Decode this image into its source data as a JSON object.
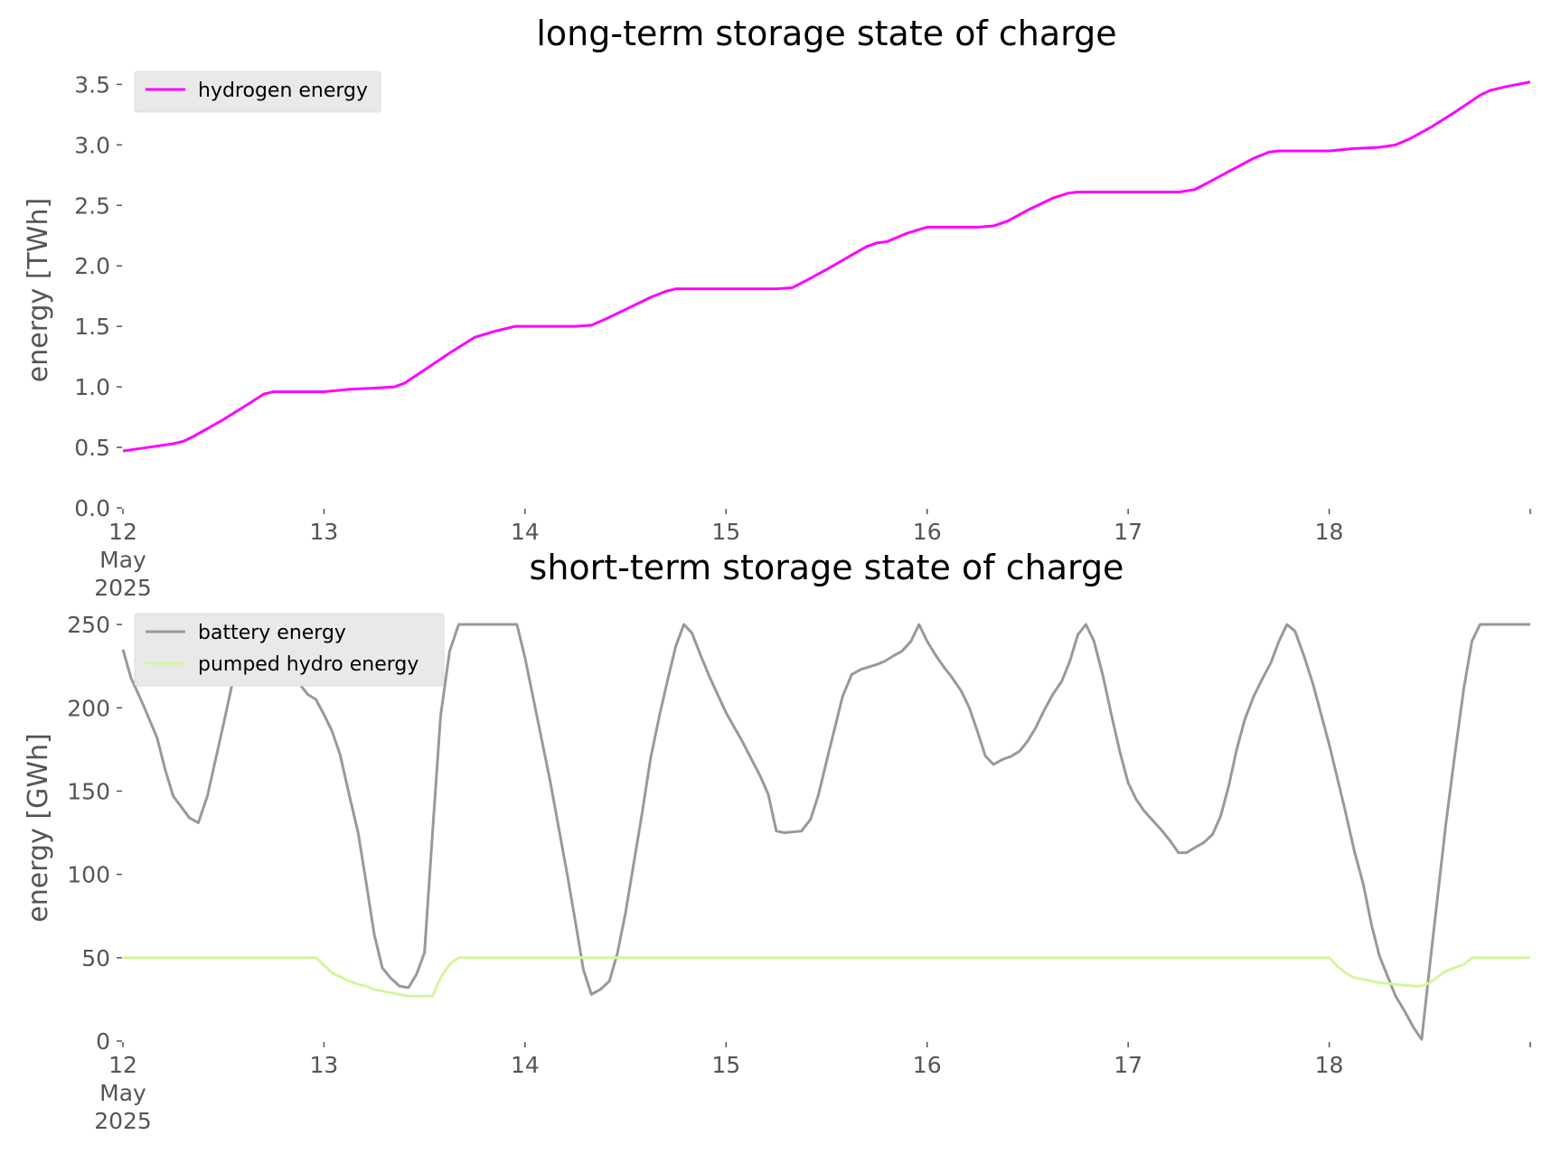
{
  "chart_data": [
    {
      "type": "line",
      "title": "long-term storage state of charge",
      "ylabel": "energy [TWh]",
      "x_unit": "day",
      "xlim": [
        12,
        19
      ],
      "ylim": [
        0,
        3.6
      ],
      "y_ticks": [
        "0.0",
        "0.5",
        "1.0",
        "1.5",
        "2.0",
        "2.5",
        "3.0",
        "3.5"
      ],
      "x_ticks": [
        {
          "x": 12,
          "lines": [
            "12",
            "May",
            "2025"
          ]
        },
        {
          "x": 13,
          "lines": [
            "13"
          ]
        },
        {
          "x": 14,
          "lines": [
            "14"
          ]
        },
        {
          "x": 15,
          "lines": [
            "15"
          ]
        },
        {
          "x": 16,
          "lines": [
            "16"
          ]
        },
        {
          "x": 17,
          "lines": [
            "17"
          ]
        },
        {
          "x": 18,
          "lines": [
            "18"
          ]
        }
      ],
      "legend_position": "top-left",
      "grid": false,
      "series": [
        {
          "name": "hydrogen energy",
          "color": "#ff00ff",
          "points": [
            [
              12.0,
              0.47
            ],
            [
              12.125,
              0.5
            ],
            [
              12.25,
              0.53
            ],
            [
              12.3,
              0.55
            ],
            [
              12.35,
              0.59
            ],
            [
              12.5,
              0.73
            ],
            [
              12.625,
              0.86
            ],
            [
              12.7,
              0.94
            ],
            [
              12.75,
              0.96
            ],
            [
              12.875,
              0.96
            ],
            [
              13.0,
              0.96
            ],
            [
              13.125,
              0.98
            ],
            [
              13.25,
              0.99
            ],
            [
              13.35,
              1.0
            ],
            [
              13.4,
              1.03
            ],
            [
              13.5,
              1.14
            ],
            [
              13.625,
              1.28
            ],
            [
              13.75,
              1.41
            ],
            [
              13.85,
              1.46
            ],
            [
              13.95,
              1.5
            ],
            [
              14.0,
              1.5
            ],
            [
              14.25,
              1.5
            ],
            [
              14.33,
              1.51
            ],
            [
              14.4,
              1.56
            ],
            [
              14.5,
              1.64
            ],
            [
              14.625,
              1.74
            ],
            [
              14.7,
              1.79
            ],
            [
              14.75,
              1.81
            ],
            [
              15.0,
              1.81
            ],
            [
              15.25,
              1.81
            ],
            [
              15.33,
              1.82
            ],
            [
              15.4,
              1.88
            ],
            [
              15.5,
              1.97
            ],
            [
              15.625,
              2.09
            ],
            [
              15.7,
              2.16
            ],
            [
              15.75,
              2.19
            ],
            [
              15.8,
              2.2
            ],
            [
              15.9,
              2.27
            ],
            [
              16.0,
              2.32
            ],
            [
              16.25,
              2.32
            ],
            [
              16.33,
              2.33
            ],
            [
              16.4,
              2.37
            ],
            [
              16.5,
              2.46
            ],
            [
              16.625,
              2.56
            ],
            [
              16.7,
              2.6
            ],
            [
              16.75,
              2.61
            ],
            [
              17.0,
              2.61
            ],
            [
              17.25,
              2.61
            ],
            [
              17.33,
              2.63
            ],
            [
              17.4,
              2.69
            ],
            [
              17.5,
              2.78
            ],
            [
              17.625,
              2.89
            ],
            [
              17.7,
              2.94
            ],
            [
              17.75,
              2.95
            ],
            [
              18.0,
              2.95
            ],
            [
              18.125,
              2.97
            ],
            [
              18.25,
              2.98
            ],
            [
              18.33,
              3.0
            ],
            [
              18.4,
              3.05
            ],
            [
              18.5,
              3.14
            ],
            [
              18.625,
              3.27
            ],
            [
              18.75,
              3.41
            ],
            [
              18.8,
              3.45
            ],
            [
              18.875,
              3.48
            ],
            [
              19.0,
              3.52
            ]
          ]
        }
      ]
    },
    {
      "type": "line",
      "title": "short-term storage state of charge",
      "ylabel": "energy [GWh]",
      "x_unit": "day",
      "xlim": [
        12,
        19
      ],
      "ylim": [
        0,
        256
      ],
      "y_ticks": [
        "0",
        "50",
        "100",
        "150",
        "200",
        "250"
      ],
      "x_ticks": [
        {
          "x": 12,
          "lines": [
            "12",
            "May",
            "2025"
          ]
        },
        {
          "x": 13,
          "lines": [
            "13"
          ]
        },
        {
          "x": 14,
          "lines": [
            "14"
          ]
        },
        {
          "x": 15,
          "lines": [
            "15"
          ]
        },
        {
          "x": 16,
          "lines": [
            "16"
          ]
        },
        {
          "x": 17,
          "lines": [
            "17"
          ]
        },
        {
          "x": 18,
          "lines": [
            "18"
          ]
        }
      ],
      "legend_position": "top-left",
      "grid": false,
      "series": [
        {
          "name": "battery energy",
          "color": "#999999",
          "points": [
            [
              12.0,
              235
            ],
            [
              12.04,
              218
            ],
            [
              12.1,
              202
            ],
            [
              12.17,
              182
            ],
            [
              12.21,
              163
            ],
            [
              12.25,
              147
            ],
            [
              12.3,
              139
            ],
            [
              12.33,
              134
            ],
            [
              12.375,
              131
            ],
            [
              12.42,
              147
            ],
            [
              12.5,
              190
            ],
            [
              12.58,
              235
            ],
            [
              12.6,
              245
            ],
            [
              12.65,
              250
            ],
            [
              12.7,
              250
            ],
            [
              12.75,
              240
            ],
            [
              12.83,
              222
            ],
            [
              12.88,
              214
            ],
            [
              12.92,
              208
            ],
            [
              12.96,
              205
            ],
            [
              13.0,
              196
            ],
            [
              13.04,
              186
            ],
            [
              13.08,
              172
            ],
            [
              13.125,
              148
            ],
            [
              13.17,
              125
            ],
            [
              13.21,
              95
            ],
            [
              13.25,
              64
            ],
            [
              13.29,
              44
            ],
            [
              13.33,
              38
            ],
            [
              13.375,
              33
            ],
            [
              13.42,
              32
            ],
            [
              13.46,
              40
            ],
            [
              13.5,
              53
            ],
            [
              13.54,
              125
            ],
            [
              13.58,
              195
            ],
            [
              13.625,
              234
            ],
            [
              13.67,
              250
            ],
            [
              13.75,
              250
            ],
            [
              13.83,
              250
            ],
            [
              13.92,
              250
            ],
            [
              13.96,
              250
            ],
            [
              14.0,
              230
            ],
            [
              14.125,
              156
            ],
            [
              14.21,
              100
            ],
            [
              14.25,
              72
            ],
            [
              14.29,
              43
            ],
            [
              14.33,
              28
            ],
            [
              14.375,
              31
            ],
            [
              14.42,
              36
            ],
            [
              14.46,
              53
            ],
            [
              14.5,
              77
            ],
            [
              14.58,
              135
            ],
            [
              14.625,
              170
            ],
            [
              14.67,
              196
            ],
            [
              14.71,
              217
            ],
            [
              14.75,
              237
            ],
            [
              14.79,
              250
            ],
            [
              14.83,
              245
            ],
            [
              14.875,
              231
            ],
            [
              14.92,
              218
            ],
            [
              15.0,
              197
            ],
            [
              15.08,
              180
            ],
            [
              15.17,
              159
            ],
            [
              15.21,
              148
            ],
            [
              15.25,
              126
            ],
            [
              15.29,
              125
            ],
            [
              15.375,
              126
            ],
            [
              15.42,
              133
            ],
            [
              15.46,
              148
            ],
            [
              15.5,
              168
            ],
            [
              15.58,
              207
            ],
            [
              15.625,
              220
            ],
            [
              15.67,
              223
            ],
            [
              15.75,
              226
            ],
            [
              15.79,
              228
            ],
            [
              15.83,
              231
            ],
            [
              15.875,
              234
            ],
            [
              15.92,
              240
            ],
            [
              15.96,
              250
            ],
            [
              16.0,
              240
            ],
            [
              16.04,
              232
            ],
            [
              16.08,
              225
            ],
            [
              16.125,
              218
            ],
            [
              16.17,
              210
            ],
            [
              16.21,
              200
            ],
            [
              16.25,
              186
            ],
            [
              16.29,
              171
            ],
            [
              16.33,
              166
            ],
            [
              16.375,
              169
            ],
            [
              16.42,
              171
            ],
            [
              16.46,
              174
            ],
            [
              16.5,
              180
            ],
            [
              16.54,
              188
            ],
            [
              16.58,
              198
            ],
            [
              16.625,
              208
            ],
            [
              16.67,
              216
            ],
            [
              16.71,
              228
            ],
            [
              16.75,
              244
            ],
            [
              16.79,
              250
            ],
            [
              16.83,
              240
            ],
            [
              16.875,
              219
            ],
            [
              16.92,
              194
            ],
            [
              16.96,
              173
            ],
            [
              17.0,
              155
            ],
            [
              17.04,
              145
            ],
            [
              17.08,
              138
            ],
            [
              17.125,
              132
            ],
            [
              17.17,
              126
            ],
            [
              17.21,
              120
            ],
            [
              17.25,
              113
            ],
            [
              17.29,
              113
            ],
            [
              17.33,
              116
            ],
            [
              17.375,
              119
            ],
            [
              17.42,
              124
            ],
            [
              17.46,
              135
            ],
            [
              17.5,
              153
            ],
            [
              17.54,
              175
            ],
            [
              17.58,
              193
            ],
            [
              17.625,
              207
            ],
            [
              17.67,
              218
            ],
            [
              17.71,
              227
            ],
            [
              17.75,
              240
            ],
            [
              17.79,
              250
            ],
            [
              17.83,
              246
            ],
            [
              17.875,
              231
            ],
            [
              17.92,
              214
            ],
            [
              18.0,
              178
            ],
            [
              18.08,
              138
            ],
            [
              18.125,
              114
            ],
            [
              18.17,
              94
            ],
            [
              18.21,
              70
            ],
            [
              18.25,
              51
            ],
            [
              18.33,
              27
            ],
            [
              18.375,
              18
            ],
            [
              18.42,
              8
            ],
            [
              18.46,
              1
            ],
            [
              18.5,
              45
            ],
            [
              18.58,
              130
            ],
            [
              18.625,
              172
            ],
            [
              18.67,
              212
            ],
            [
              18.71,
              240
            ],
            [
              18.75,
              250
            ],
            [
              18.875,
              250
            ],
            [
              19.0,
              250
            ]
          ]
        },
        {
          "name": "pumped hydro energy",
          "color": "#d4f59e",
          "points": [
            [
              12.0,
              50
            ],
            [
              12.96,
              50
            ],
            [
              13.04,
              41
            ],
            [
              13.125,
              36
            ],
            [
              13.17,
              34
            ],
            [
              13.21,
              33
            ],
            [
              13.25,
              31
            ],
            [
              13.33,
              29
            ],
            [
              13.42,
              27
            ],
            [
              13.5,
              27
            ],
            [
              13.54,
              27
            ],
            [
              13.58,
              38
            ],
            [
              13.625,
              46
            ],
            [
              13.67,
              50
            ],
            [
              18.0,
              50
            ],
            [
              18.04,
              45
            ],
            [
              18.08,
              41
            ],
            [
              18.125,
              38
            ],
            [
              18.21,
              36
            ],
            [
              18.25,
              35
            ],
            [
              18.33,
              34
            ],
            [
              18.42,
              33
            ],
            [
              18.46,
              33
            ],
            [
              18.5,
              35
            ],
            [
              18.58,
              42
            ],
            [
              18.67,
              46
            ],
            [
              18.71,
              50
            ],
            [
              19.0,
              50
            ]
          ]
        }
      ]
    }
  ]
}
